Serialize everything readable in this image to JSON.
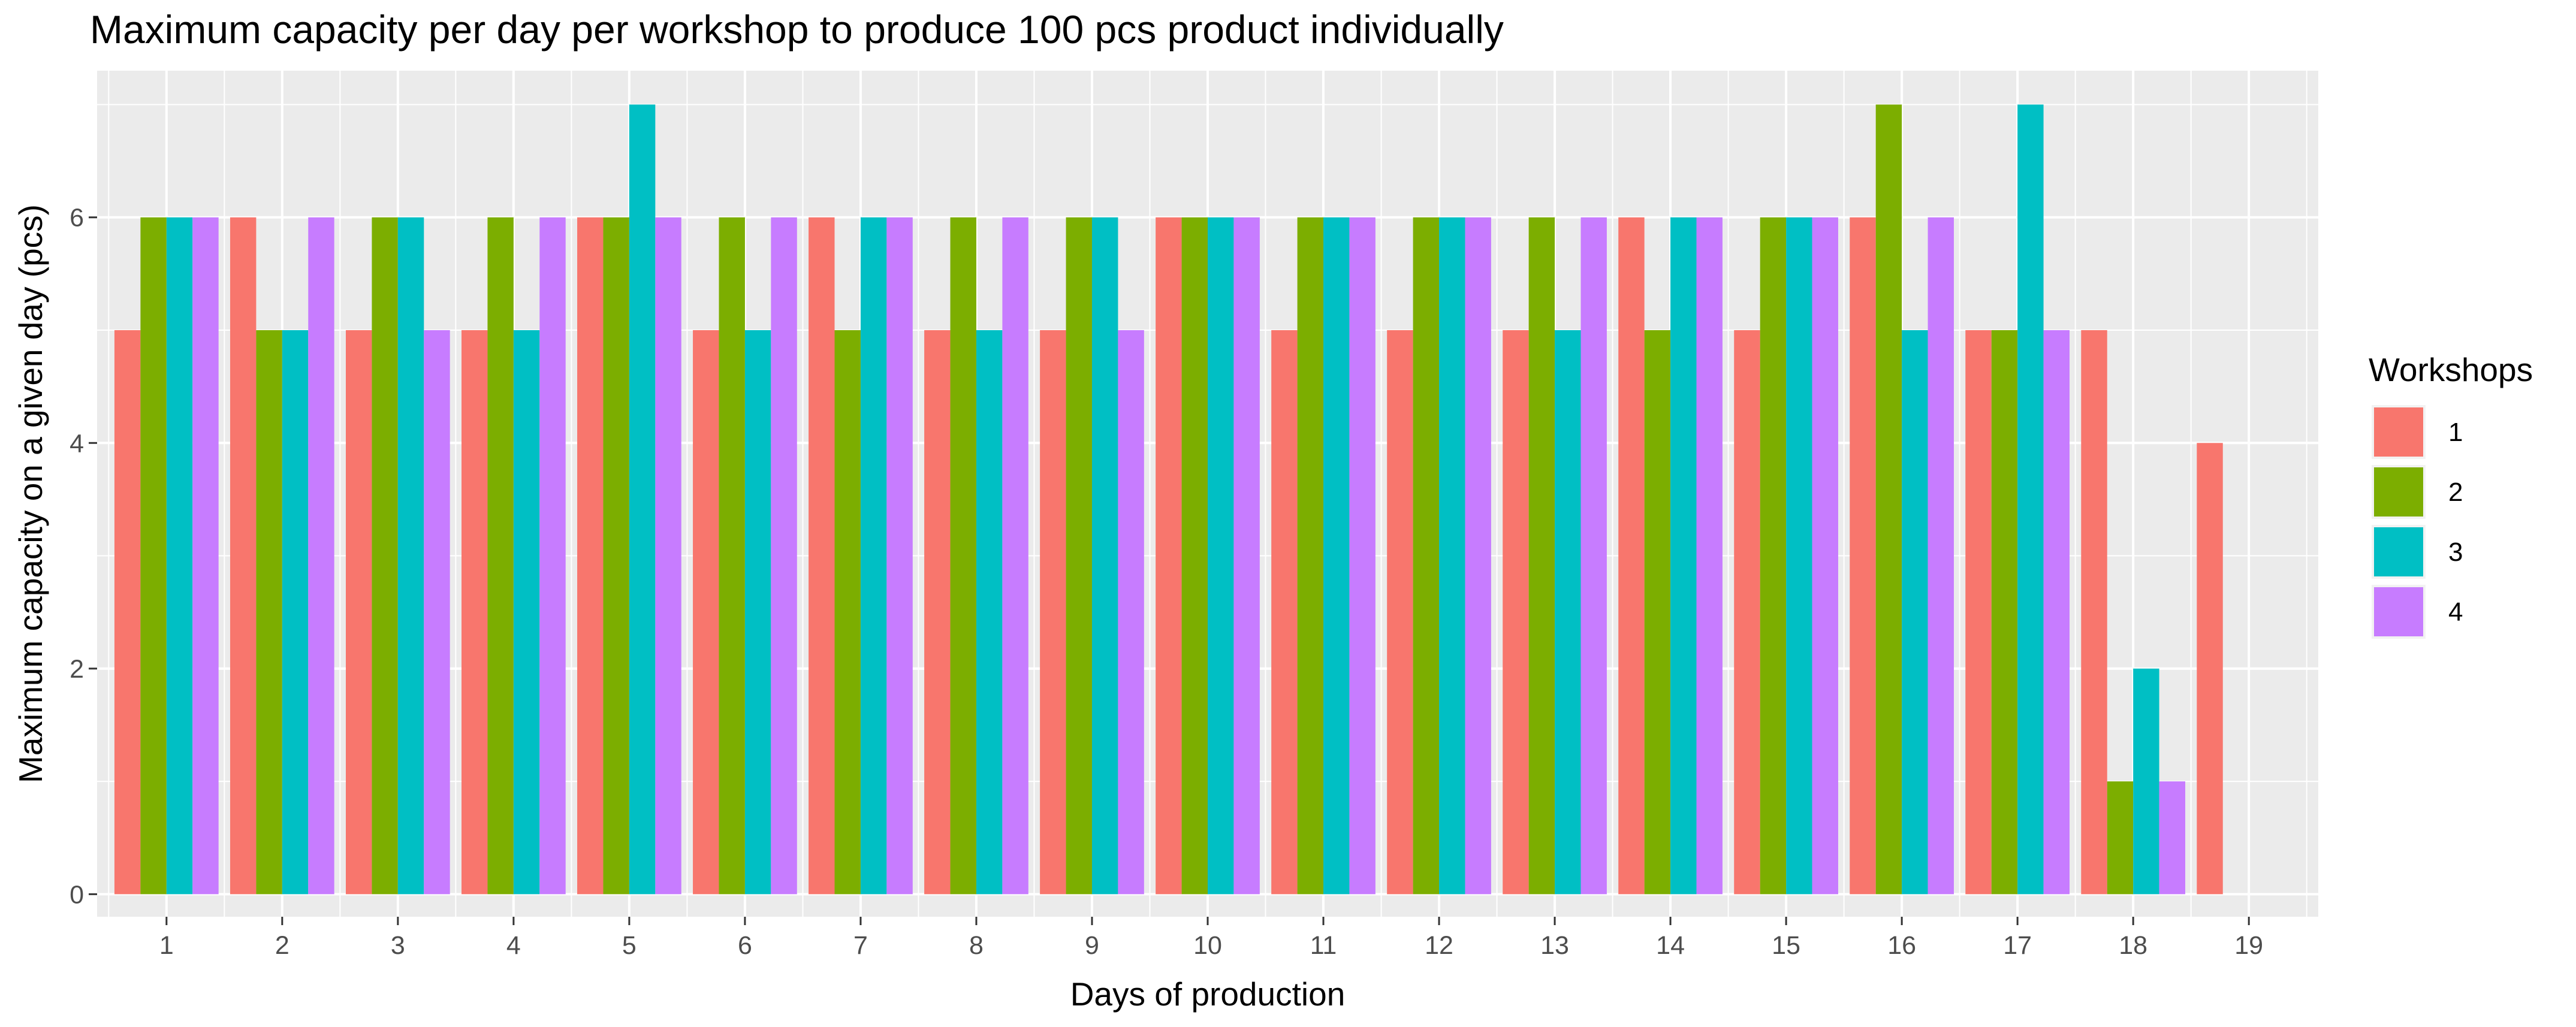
{
  "chart_data": {
    "type": "bar",
    "title": "Maximum capacity per day per workshop to produce 100 pcs product individually",
    "xlabel": "Days of production",
    "ylabel": "Maximum capacity on a given day (pcs)",
    "categories": [
      "1",
      "2",
      "3",
      "4",
      "5",
      "6",
      "7",
      "8",
      "9",
      "10",
      "11",
      "12",
      "13",
      "14",
      "15",
      "16",
      "17",
      "18",
      "19"
    ],
    "yticks": [
      0,
      2,
      4,
      6
    ],
    "ylim": [
      -0.2,
      7.3
    ],
    "grid": true,
    "legend": {
      "title": "Workshops",
      "position": "right"
    },
    "series": [
      {
        "name": "1",
        "color": "#F8766D",
        "values": [
          5,
          6,
          5,
          5,
          6,
          5,
          6,
          5,
          5,
          6,
          5,
          5,
          5,
          6,
          5,
          6,
          5,
          5,
          4
        ]
      },
      {
        "name": "2",
        "color": "#7CAE00",
        "values": [
          6,
          5,
          6,
          6,
          6,
          6,
          5,
          6,
          6,
          6,
          6,
          6,
          6,
          5,
          6,
          7,
          5,
          1,
          null
        ]
      },
      {
        "name": "3",
        "color": "#00BFC4",
        "values": [
          6,
          5,
          6,
          5,
          7,
          5,
          6,
          5,
          6,
          6,
          6,
          6,
          5,
          6,
          6,
          5,
          7,
          2,
          null
        ]
      },
      {
        "name": "4",
        "color": "#C77CFF",
        "values": [
          6,
          6,
          5,
          6,
          6,
          6,
          6,
          6,
          5,
          6,
          6,
          6,
          6,
          6,
          6,
          6,
          5,
          1,
          null
        ]
      }
    ]
  }
}
